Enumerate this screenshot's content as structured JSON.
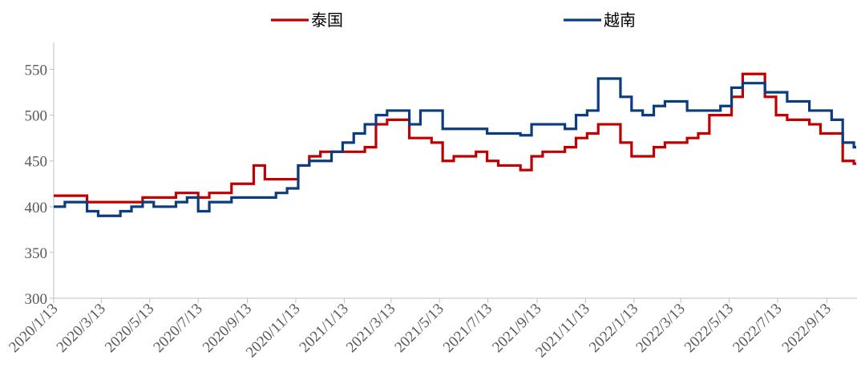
{
  "chart_data": {
    "type": "line",
    "step": true,
    "x": [
      "2020/1/13",
      "2020/1/27",
      "2020/2/10",
      "2020/2/24",
      "2020/3/9",
      "2020/3/23",
      "2020/4/6",
      "2020/4/20",
      "2020/5/4",
      "2020/5/18",
      "2020/6/1",
      "2020/6/15",
      "2020/6/29",
      "2020/7/13",
      "2020/7/27",
      "2020/8/10",
      "2020/8/24",
      "2020/9/7",
      "2020/9/21",
      "2020/10/5",
      "2020/10/19",
      "2020/11/2",
      "2020/11/16",
      "2020/11/30",
      "2020/12/14",
      "2020/12/28",
      "2021/1/11",
      "2021/1/25",
      "2021/2/8",
      "2021/2/22",
      "2021/3/8",
      "2021/3/22",
      "2021/4/5",
      "2021/4/19",
      "2021/5/3",
      "2021/5/17",
      "2021/5/31",
      "2021/6/14",
      "2021/6/28",
      "2021/7/12",
      "2021/7/26",
      "2021/8/9",
      "2021/8/23",
      "2021/9/6",
      "2021/9/20",
      "2021/10/4",
      "2021/10/18",
      "2021/11/1",
      "2021/11/15",
      "2021/11/29",
      "2021/12/13",
      "2021/12/27",
      "2022/1/10",
      "2022/1/24",
      "2022/2/7",
      "2022/2/21",
      "2022/3/7",
      "2022/3/21",
      "2022/4/4",
      "2022/4/18",
      "2022/5/2",
      "2022/5/16",
      "2022/5/30",
      "2022/6/13",
      "2022/6/27",
      "2022/7/11",
      "2022/7/25",
      "2022/8/8",
      "2022/8/22",
      "2022/9/5",
      "2022/9/19",
      "2022/10/3",
      "2022/10/17"
    ],
    "series": [
      {
        "name": "泰国",
        "color": "#c00000",
        "values": [
          412,
          412,
          412,
          405,
          405,
          405,
          405,
          405,
          410,
          410,
          410,
          415,
          415,
          410,
          415,
          415,
          425,
          425,
          445,
          430,
          430,
          430,
          445,
          455,
          460,
          460,
          460,
          460,
          465,
          490,
          495,
          495,
          475,
          475,
          470,
          450,
          455,
          455,
          460,
          450,
          445,
          445,
          440,
          455,
          460,
          460,
          465,
          475,
          480,
          490,
          490,
          470,
          455,
          455,
          465,
          470,
          470,
          475,
          480,
          500,
          500,
          520,
          545,
          545,
          520,
          500,
          495,
          495,
          490,
          480,
          480,
          450,
          447
        ]
      },
      {
        "name": "越南",
        "color": "#0b3d7e",
        "values": [
          400,
          405,
          405,
          395,
          390,
          390,
          395,
          400,
          405,
          400,
          400,
          405,
          410,
          395,
          405,
          405,
          410,
          410,
          410,
          410,
          415,
          420,
          445,
          450,
          450,
          460,
          470,
          480,
          490,
          500,
          505,
          505,
          490,
          505,
          505,
          485,
          485,
          485,
          485,
          480,
          480,
          480,
          478,
          490,
          490,
          490,
          485,
          500,
          505,
          540,
          540,
          520,
          505,
          500,
          510,
          515,
          515,
          505,
          505,
          505,
          510,
          530,
          535,
          535,
          525,
          525,
          515,
          515,
          505,
          505,
          495,
          470,
          465
        ]
      }
    ],
    "xlim": [
      "2020/1/13",
      "2022/10/21"
    ],
    "xticks": [
      "2020/1/13",
      "2020/3/13",
      "2020/5/13",
      "2020/7/13",
      "2020/9/13",
      "2020/11/13",
      "2021/1/13",
      "2021/3/13",
      "2021/5/13",
      "2021/7/13",
      "2021/9/13",
      "2021/11/13",
      "2022/1/13",
      "2022/3/13",
      "2022/5/13",
      "2022/7/13",
      "2022/9/13"
    ],
    "ylim": [
      300,
      575
    ],
    "yticks": [
      300,
      350,
      400,
      450,
      500,
      550
    ],
    "grid": false,
    "legend": "top"
  }
}
